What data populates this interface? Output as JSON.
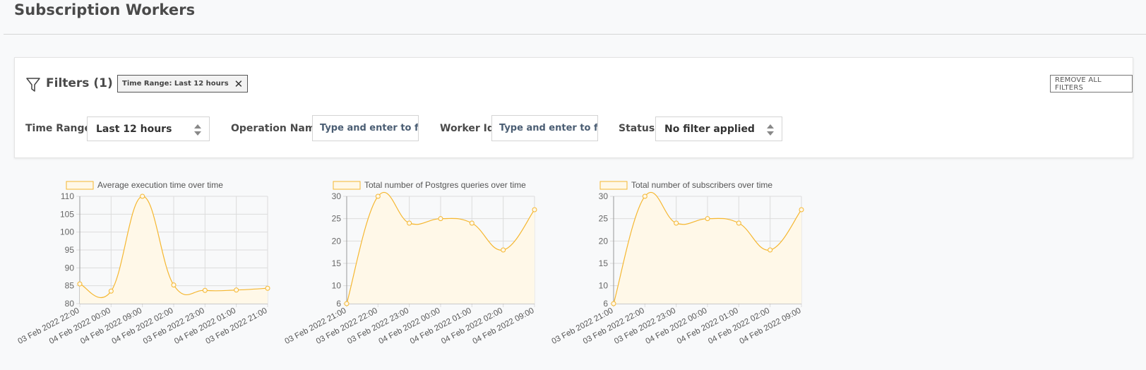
{
  "page": {
    "title": "Subscription Workers"
  },
  "filters": {
    "heading": "Filters (1)",
    "chip_label": "Time Range: Last 12 hours",
    "remove_all_label": "REMOVE ALL FILTERS",
    "time_range": {
      "label": "Time Range",
      "value": "Last 12 hours"
    },
    "operation_name": {
      "label": "Operation Name",
      "placeholder": "Type and enter to filter"
    },
    "worker_id": {
      "label": "Worker Id",
      "placeholder": "Type and enter to filter"
    },
    "status": {
      "label": "Status",
      "value": "No filter applied"
    }
  },
  "colors": {
    "series_stroke": "#f5b731",
    "series_fill": "#fff8e8",
    "grid": "#dcdcdc"
  },
  "chart_data": [
    {
      "type": "line",
      "legend": "Average execution time over time",
      "categories": [
        "03 Feb 2022 22:00",
        "04 Feb 2022 00:00",
        "04 Feb 2022 09:00",
        "04 Feb 2022 02:00",
        "03 Feb 2022 23:00",
        "04 Feb 2022 01:00",
        "03 Feb 2022 21:00"
      ],
      "values": [
        85.5,
        83.5,
        110,
        85.2,
        83.7,
        83.8,
        84.3
      ],
      "yticks": [
        80,
        85,
        90,
        95,
        100,
        105,
        110
      ],
      "ylim": [
        80,
        110
      ],
      "grid": true,
      "legend_position": "top"
    },
    {
      "type": "line",
      "legend": "Total number of Postgres queries over time",
      "categories": [
        "03 Feb 2022 21:00",
        "03 Feb 2022 22:00",
        "03 Feb 2022 23:00",
        "04 Feb 2022 00:00",
        "04 Feb 2022 01:00",
        "04 Feb 2022 02:00",
        "04 Feb 2022 09:00"
      ],
      "values": [
        6,
        30,
        24,
        25,
        24,
        18,
        27
      ],
      "yticks": [
        6,
        10,
        15,
        20,
        25,
        30
      ],
      "ylim": [
        6,
        30
      ],
      "grid": true,
      "legend_position": "top"
    },
    {
      "type": "line",
      "legend": "Total number of subscribers over time",
      "categories": [
        "03 Feb 2022 21:00",
        "03 Feb 2022 22:00",
        "03 Feb 2022 23:00",
        "04 Feb 2022 00:00",
        "04 Feb 2022 01:00",
        "04 Feb 2022 02:00",
        "04 Feb 2022 09:00"
      ],
      "values": [
        6,
        30,
        24,
        25,
        24,
        18,
        27
      ],
      "yticks": [
        6,
        10,
        15,
        20,
        25,
        30
      ],
      "ylim": [
        6,
        30
      ],
      "grid": true,
      "legend_position": "top"
    }
  ]
}
